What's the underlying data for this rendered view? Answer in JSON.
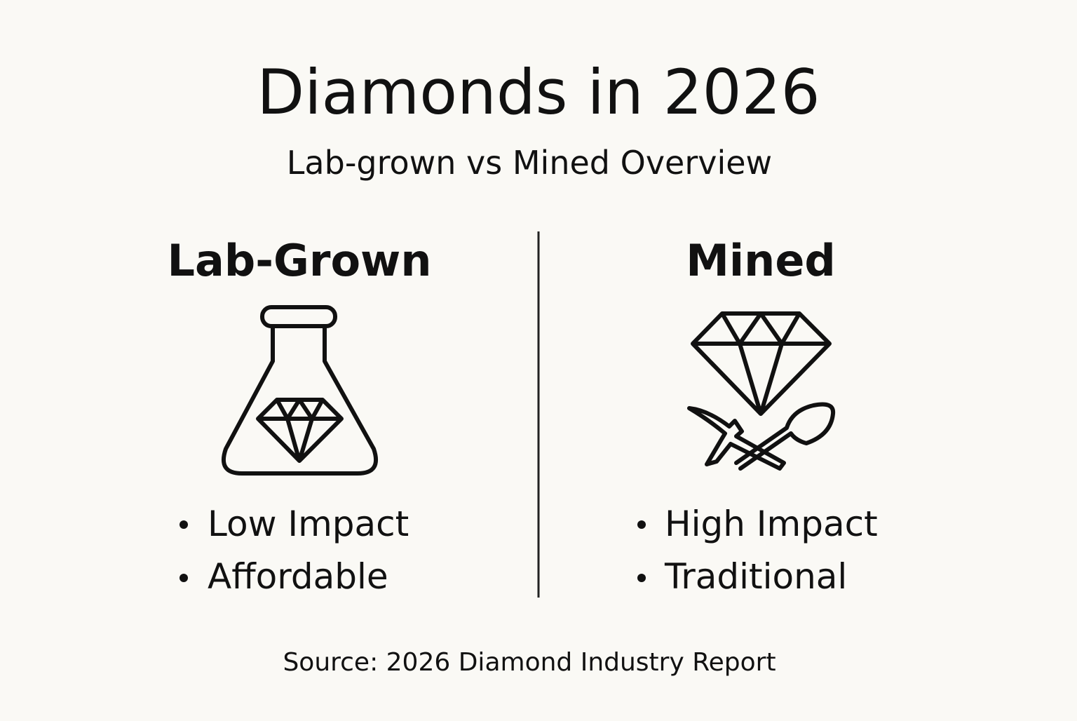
{
  "title": "Diamonds in 2026",
  "subtitle": "Lab-grown vs Mined Overview",
  "columns": [
    {
      "heading": "Lab-Grown",
      "bullets": [
        "Low Impact",
        "Affordable"
      ]
    },
    {
      "heading": "Mined",
      "bullets": [
        "High Impact",
        "Traditional"
      ]
    }
  ],
  "source": "Source: 2026 Diamond Industry Report"
}
